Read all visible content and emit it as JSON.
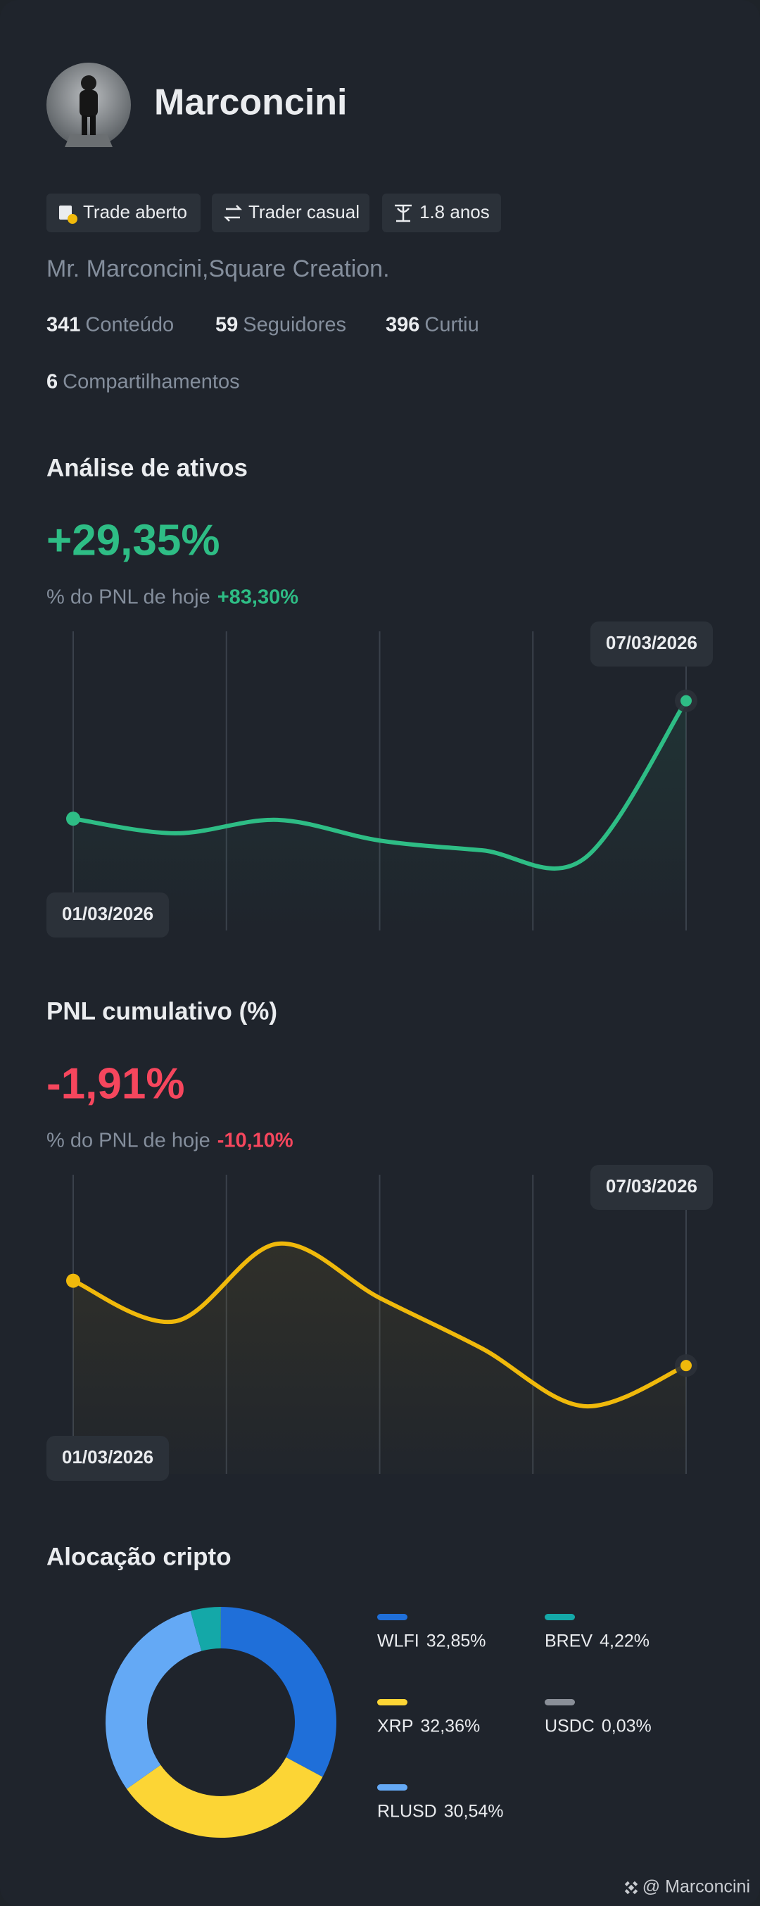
{
  "profile": {
    "name": "Marconcini",
    "badges": [
      "Trade aberto",
      "Trader casual",
      "1.8 anos"
    ],
    "bio": "Mr. Marconcini,Square Creation.",
    "stats": [
      {
        "value": "341",
        "label": "Conteúdo"
      },
      {
        "value": "59",
        "label": "Seguidores"
      },
      {
        "value": "396",
        "label": "Curtiu"
      },
      {
        "value": "6",
        "label": "Compartilhamentos"
      }
    ]
  },
  "chart_data": [
    {
      "type": "line",
      "title": "Análise de ativos",
      "headline": "+29,35%",
      "headline_color": "#2ebd85",
      "subtitle": "% do PNL de hoje",
      "change": "+83,30%",
      "categories": [
        "01/03/2026",
        null,
        null,
        null,
        null,
        null,
        "07/03/2026"
      ],
      "series": [
        {
          "color": "#2ebd85",
          "values": [
            92,
            80,
            91,
            74,
            66,
            59,
            189
          ]
        }
      ],
      "ylim": [
        0,
        245
      ]
    },
    {
      "type": "line",
      "title": "PNL cumulativo (%)",
      "headline": "-1,91%",
      "headline_color": "#f6465d",
      "subtitle": "% do PNL de hoje",
      "change": "-10,10%",
      "categories": [
        "01/03/2026",
        null,
        null,
        null,
        null,
        null,
        "07/03/2026"
      ],
      "series": [
        {
          "color": "#f0b90b",
          "values": [
            157,
            124,
            187,
            143,
            102,
            55,
            88
          ]
        }
      ],
      "ylim": [
        0,
        242
      ]
    },
    {
      "type": "pie",
      "title": "Alocação cripto",
      "categories": [
        "WLFI",
        "XRP",
        "RLUSD",
        "BREV",
        "USDC"
      ],
      "values": [
        32.85,
        32.36,
        30.54,
        4.22,
        0.03
      ],
      "value_labels": [
        "32,85%",
        "32,36%",
        "30,54%",
        "4,22%",
        "0,03%"
      ],
      "colors": [
        "#1f6fd9",
        "#fcd535",
        "#64a9f5",
        "#14a8a8",
        "#8a8f98"
      ]
    }
  ],
  "watermark": "@ Marconcini"
}
